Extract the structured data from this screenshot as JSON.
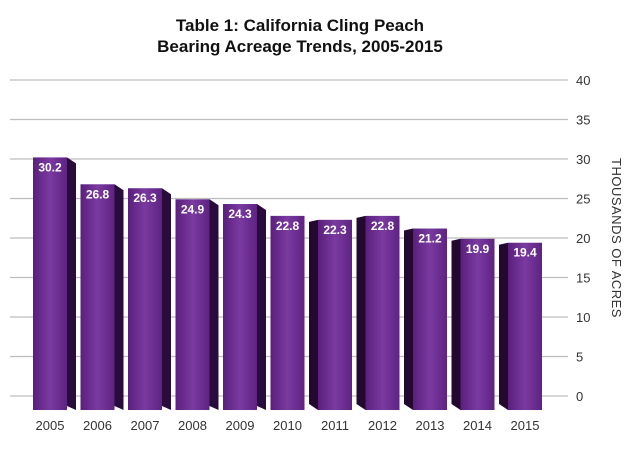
{
  "chart_data": {
    "type": "bar",
    "title_line1": "Table 1: California Cling Peach",
    "title_line2": "Bearing Acreage Trends, 2005-2015",
    "xlabel": "",
    "ylabel": "THOUSANDS OF ACRES",
    "ylim": [
      0,
      40
    ],
    "yticks": [
      0,
      5,
      10,
      15,
      20,
      25,
      30,
      35,
      40
    ],
    "y_axis_position": "right",
    "grid": true,
    "bar_color": "#6a2a8e",
    "label_color": "#ffffff",
    "categories": [
      "2005",
      "2006",
      "2007",
      "2008",
      "2009",
      "2010",
      "2011",
      "2012",
      "2013",
      "2014",
      "2015"
    ],
    "values": [
      30.2,
      26.8,
      26.3,
      24.9,
      24.3,
      22.8,
      22.3,
      22.8,
      21.2,
      19.9,
      19.4
    ],
    "data_labels": [
      "30.2",
      "26.8",
      "26.3",
      "24.9",
      "24.3",
      "22.8",
      "22.3",
      "22.8",
      "21.2",
      "19.9",
      "19.4"
    ]
  }
}
